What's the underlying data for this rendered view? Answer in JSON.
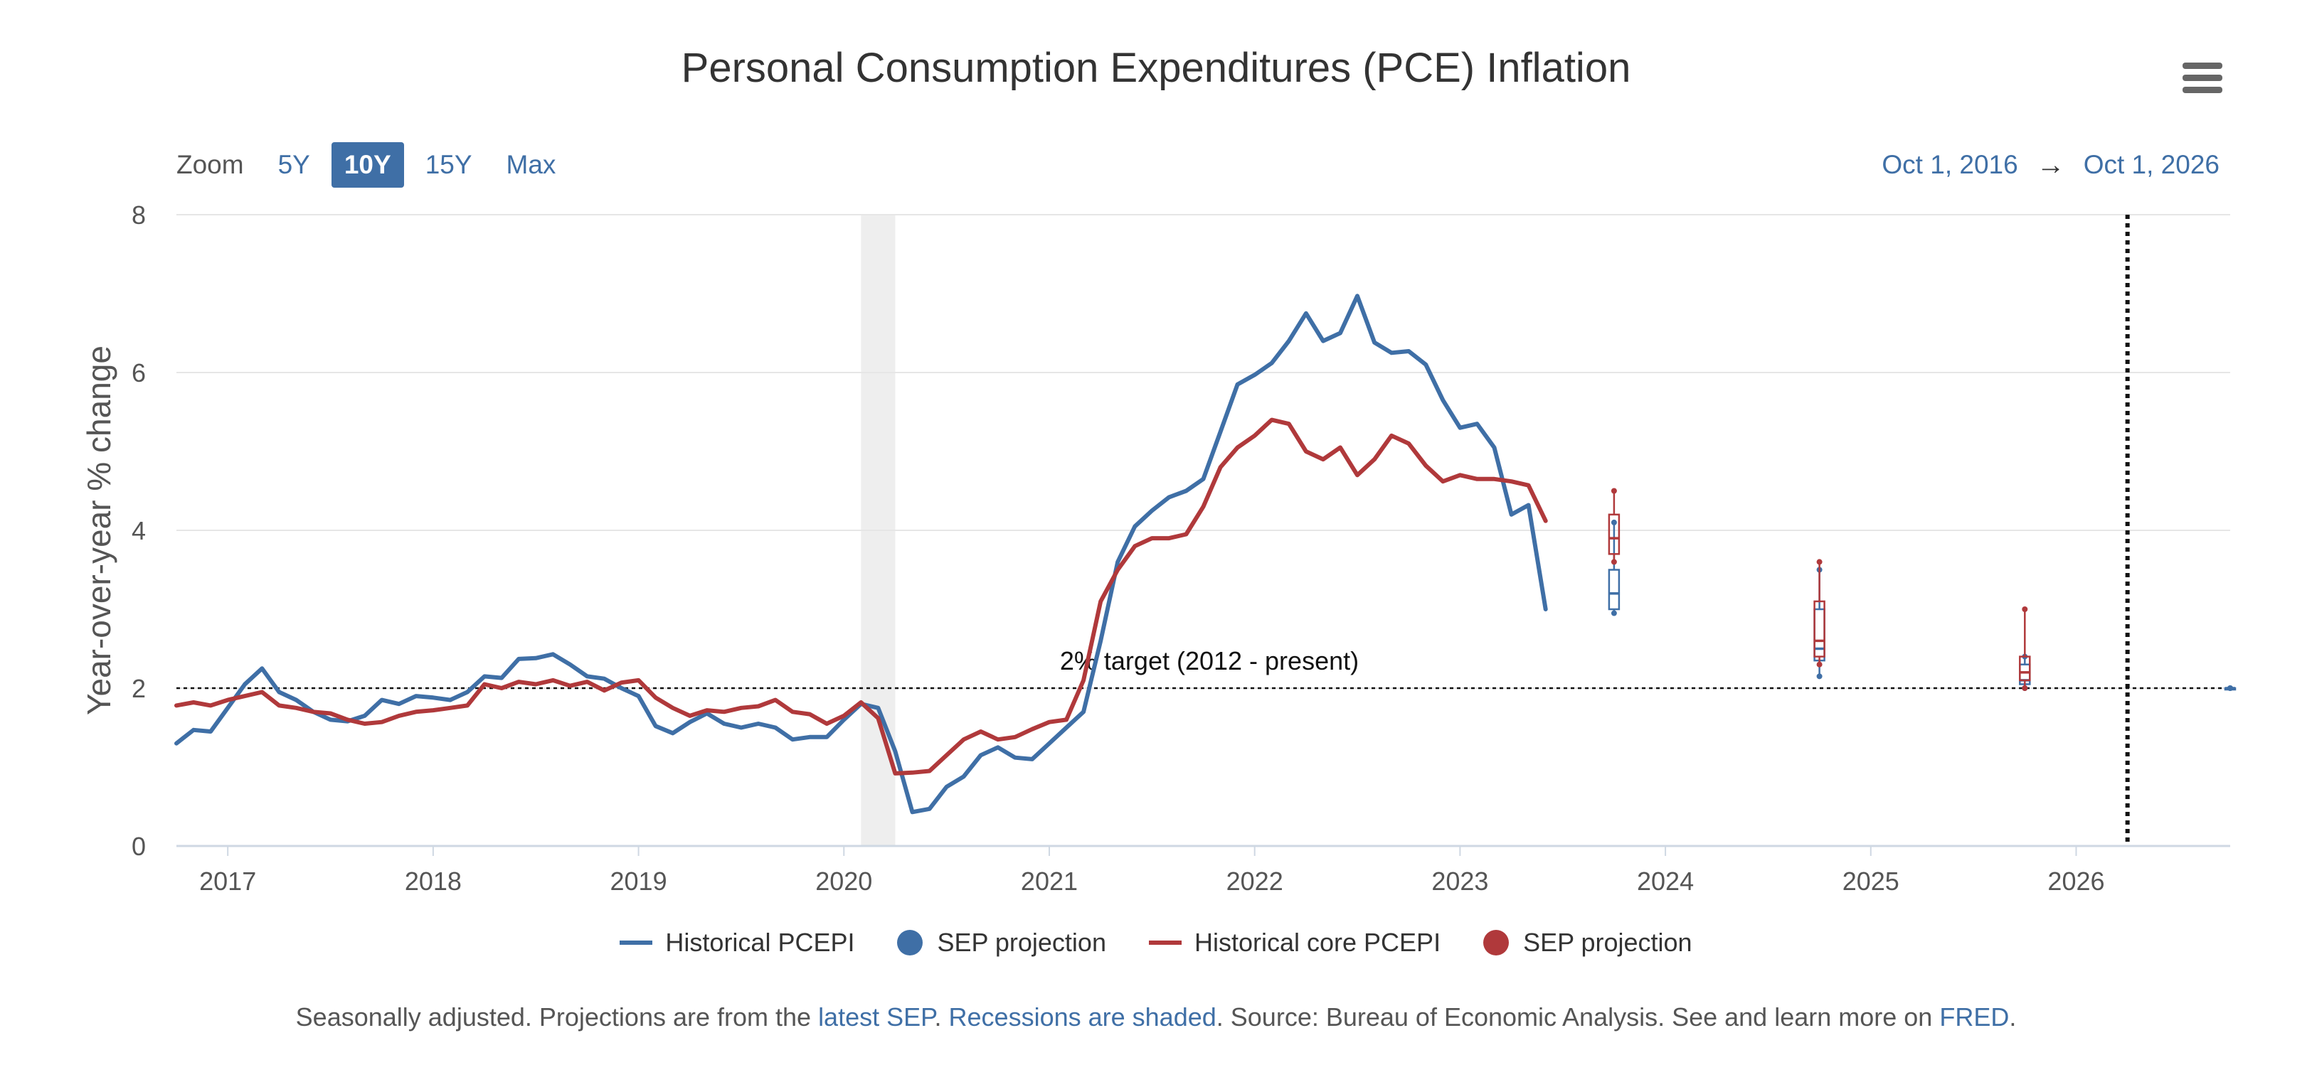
{
  "title": "Personal Consumption Expenditures (PCE) Inflation",
  "zoom": {
    "label": "Zoom",
    "buttons": [
      "5Y",
      "10Y",
      "15Y",
      "Max"
    ],
    "active": "10Y"
  },
  "range": {
    "from": "Oct 1, 2016",
    "arrow": "→",
    "to": "Oct 1, 2026"
  },
  "colors": {
    "pce": "#3f6fa6",
    "core": "#b0393b",
    "recession": "#eeeeee",
    "grid": "#e6e6e6"
  },
  "chart_data": {
    "type": "line",
    "ylabel": "Year-over-year % change",
    "xlabel": "",
    "xlim": [
      "2016-10",
      "2026-10"
    ],
    "ylim": [
      0,
      8
    ],
    "yticks": [
      0,
      2,
      4,
      6,
      8
    ],
    "xticks": [
      "2017",
      "2018",
      "2019",
      "2020",
      "2021",
      "2022",
      "2023",
      "2024",
      "2025",
      "2026"
    ],
    "grid": true,
    "legend_position": "bottom",
    "recession": {
      "start": "2020-02",
      "end": "2020-04"
    },
    "target": {
      "value": 2,
      "label": "2% target (2012 - present)"
    },
    "vertical_marker": "2026-04",
    "series": [
      {
        "name": "Historical PCEPI",
        "color": "#3f6fa6",
        "x": [
          "2016-10",
          "2016-11",
          "2016-12",
          "2017-01",
          "2017-02",
          "2017-03",
          "2017-04",
          "2017-05",
          "2017-06",
          "2017-07",
          "2017-08",
          "2017-09",
          "2017-10",
          "2017-11",
          "2017-12",
          "2018-01",
          "2018-02",
          "2018-03",
          "2018-04",
          "2018-05",
          "2018-06",
          "2018-07",
          "2018-08",
          "2018-09",
          "2018-10",
          "2018-11",
          "2018-12",
          "2019-01",
          "2019-02",
          "2019-03",
          "2019-04",
          "2019-05",
          "2019-06",
          "2019-07",
          "2019-08",
          "2019-09",
          "2019-10",
          "2019-11",
          "2019-12",
          "2020-01",
          "2020-02",
          "2020-03",
          "2020-04",
          "2020-05",
          "2020-06",
          "2020-07",
          "2020-08",
          "2020-09",
          "2020-10",
          "2020-11",
          "2020-12",
          "2021-01",
          "2021-02",
          "2021-03",
          "2021-04",
          "2021-05",
          "2021-06",
          "2021-07",
          "2021-08",
          "2021-09",
          "2021-10",
          "2021-11",
          "2021-12",
          "2022-01",
          "2022-02",
          "2022-03",
          "2022-04",
          "2022-05",
          "2022-06",
          "2022-07",
          "2022-08",
          "2022-09",
          "2022-10",
          "2022-11",
          "2022-12",
          "2023-01",
          "2023-02",
          "2023-03",
          "2023-04",
          "2023-05",
          "2023-06"
        ],
        "values": [
          1.3,
          1.47,
          1.45,
          1.75,
          2.05,
          2.25,
          1.95,
          1.85,
          1.7,
          1.6,
          1.58,
          1.65,
          1.85,
          1.8,
          1.9,
          1.88,
          1.85,
          1.95,
          2.15,
          2.13,
          2.37,
          2.38,
          2.43,
          2.3,
          2.15,
          2.12,
          2.0,
          1.9,
          1.52,
          1.43,
          1.57,
          1.68,
          1.55,
          1.5,
          1.55,
          1.5,
          1.35,
          1.38,
          1.38,
          1.6,
          1.8,
          1.75,
          1.2,
          0.43,
          0.47,
          0.75,
          0.88,
          1.15,
          1.25,
          1.12,
          1.1,
          1.3,
          1.5,
          1.7,
          2.6,
          3.6,
          4.05,
          4.25,
          4.42,
          4.5,
          4.65,
          5.25,
          5.85,
          5.97,
          6.12,
          6.4,
          6.75,
          6.4,
          6.5,
          6.97,
          6.38,
          6.25,
          6.27,
          6.1,
          5.65,
          5.3,
          5.35,
          5.05,
          4.2,
          4.32,
          3.0
        ]
      },
      {
        "name": "Historical core PCEPI",
        "color": "#b0393b",
        "x": [
          "2016-10",
          "2016-11",
          "2016-12",
          "2017-01",
          "2017-02",
          "2017-03",
          "2017-04",
          "2017-05",
          "2017-06",
          "2017-07",
          "2017-08",
          "2017-09",
          "2017-10",
          "2017-11",
          "2017-12",
          "2018-01",
          "2018-02",
          "2018-03",
          "2018-04",
          "2018-05",
          "2018-06",
          "2018-07",
          "2018-08",
          "2018-09",
          "2018-10",
          "2018-11",
          "2018-12",
          "2019-01",
          "2019-02",
          "2019-03",
          "2019-04",
          "2019-05",
          "2019-06",
          "2019-07",
          "2019-08",
          "2019-09",
          "2019-10",
          "2019-11",
          "2019-12",
          "2020-01",
          "2020-02",
          "2020-03",
          "2020-04",
          "2020-05",
          "2020-06",
          "2020-07",
          "2020-08",
          "2020-09",
          "2020-10",
          "2020-11",
          "2020-12",
          "2021-01",
          "2021-02",
          "2021-03",
          "2021-04",
          "2021-05",
          "2021-06",
          "2021-07",
          "2021-08",
          "2021-09",
          "2021-10",
          "2021-11",
          "2021-12",
          "2022-01",
          "2022-02",
          "2022-03",
          "2022-04",
          "2022-05",
          "2022-06",
          "2022-07",
          "2022-08",
          "2022-09",
          "2022-10",
          "2022-11",
          "2022-12",
          "2023-01",
          "2023-02",
          "2023-03",
          "2023-04",
          "2023-05",
          "2023-06"
        ],
        "values": [
          1.78,
          1.82,
          1.78,
          1.85,
          1.9,
          1.95,
          1.78,
          1.75,
          1.7,
          1.68,
          1.6,
          1.55,
          1.57,
          1.65,
          1.7,
          1.72,
          1.75,
          1.78,
          2.05,
          2.0,
          2.08,
          2.05,
          2.1,
          2.03,
          2.08,
          1.97,
          2.07,
          2.1,
          1.88,
          1.75,
          1.65,
          1.72,
          1.7,
          1.75,
          1.77,
          1.85,
          1.7,
          1.67,
          1.55,
          1.65,
          1.82,
          1.62,
          0.92,
          0.93,
          0.95,
          1.15,
          1.35,
          1.45,
          1.35,
          1.38,
          1.48,
          1.57,
          1.6,
          2.1,
          3.1,
          3.5,
          3.8,
          3.9,
          3.9,
          3.95,
          4.3,
          4.8,
          5.05,
          5.2,
          5.4,
          5.35,
          5.0,
          4.9,
          5.05,
          4.7,
          4.9,
          5.2,
          5.1,
          4.82,
          4.62,
          4.7,
          4.65,
          4.65,
          4.62,
          4.57,
          4.12
        ]
      },
      {
        "name": "SEP projection",
        "color": "#3f6fa6",
        "type": "boxplot",
        "boxes": [
          {
            "x": "2023-10",
            "low": 2.95,
            "q1": 3.0,
            "median": 3.2,
            "q3": 3.5,
            "high": 4.1
          },
          {
            "x": "2024-10",
            "low": 2.15,
            "q1": 2.35,
            "median": 2.5,
            "q3": 3.0,
            "high": 3.5
          },
          {
            "x": "2025-10",
            "low": 2.0,
            "q1": 2.05,
            "median": 2.1,
            "q3": 2.3,
            "high": 2.4
          },
          {
            "x": "2026-10",
            "low": 2.0,
            "q1": 2.0,
            "median": 2.0,
            "q3": 2.0,
            "high": 2.0
          }
        ]
      },
      {
        "name": "SEP projection",
        "color": "#b0393b",
        "type": "boxplot",
        "boxes": [
          {
            "x": "2023-10",
            "low": 3.6,
            "q1": 3.7,
            "median": 3.9,
            "q3": 4.2,
            "high": 4.5
          },
          {
            "x": "2024-10",
            "low": 2.3,
            "q1": 2.4,
            "median": 2.6,
            "q3": 3.1,
            "high": 3.6
          },
          {
            "x": "2025-10",
            "low": 2.0,
            "q1": 2.1,
            "median": 2.2,
            "q3": 2.4,
            "high": 3.0
          }
        ]
      }
    ]
  },
  "legend": [
    {
      "label": "Historical PCEPI",
      "kind": "line",
      "color": "#3f6fa6"
    },
    {
      "label": "SEP projection",
      "kind": "dot",
      "color": "#3f6fa6"
    },
    {
      "label": "Historical core PCEPI",
      "kind": "line",
      "color": "#b0393b"
    },
    {
      "label": "SEP projection",
      "kind": "dot",
      "color": "#b0393b"
    }
  ],
  "footnote": {
    "t1": "Seasonally adjusted. Projections are from the ",
    "link1": "latest SEP",
    "t2": ". ",
    "link2": "Recessions are shaded",
    "t3": ". Source: Bureau of Economic Analysis. See and learn more on ",
    "link3": "FRED",
    "t4": "."
  }
}
